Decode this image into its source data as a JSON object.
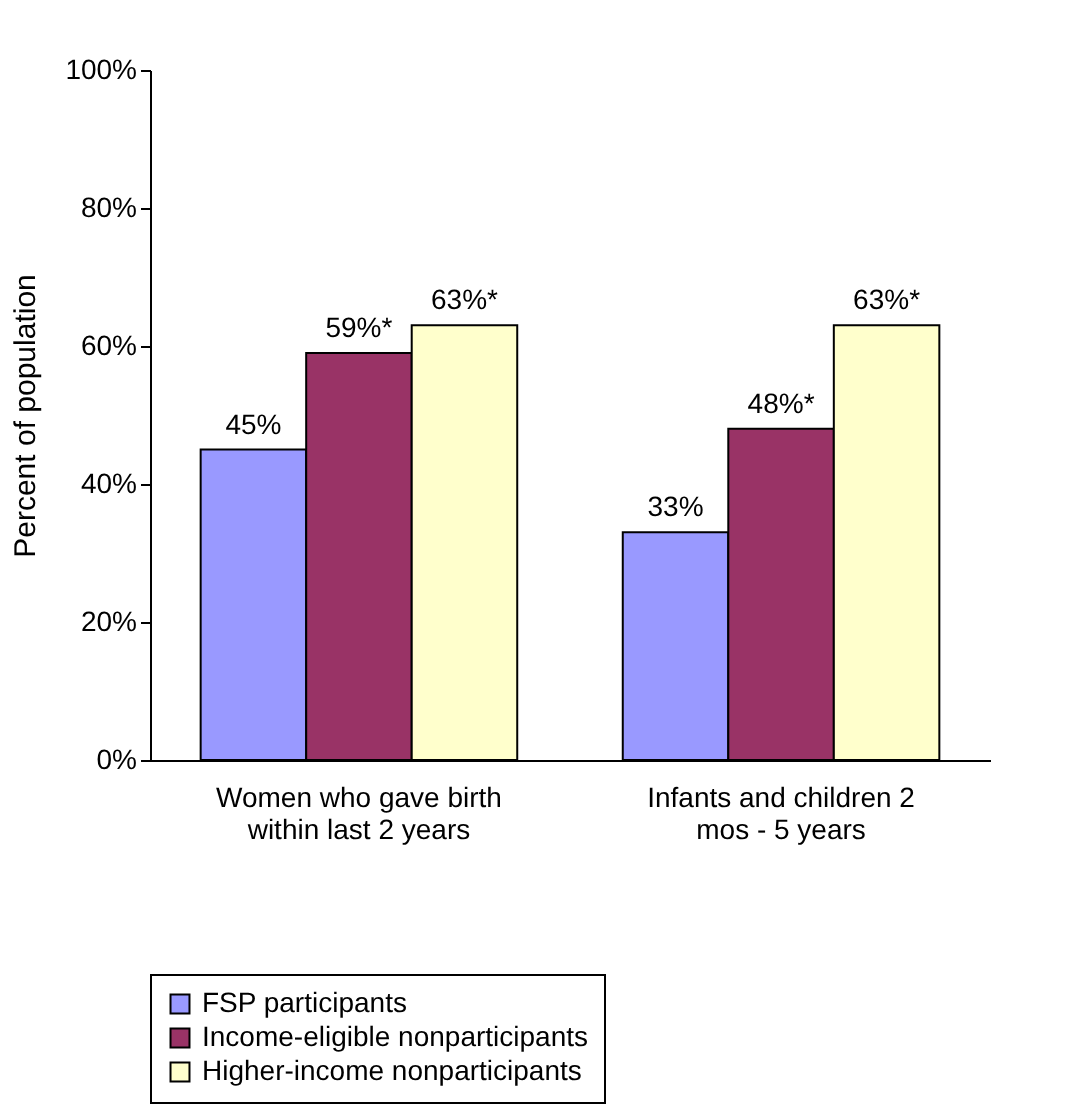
{
  "chart_data": {
    "type": "bar",
    "ylabel": "Percent of population",
    "categories": [
      "Women who gave birth within last 2 years",
      "Infants and children 2 mos - 5 years"
    ],
    "series": [
      {
        "name": "FSP participants",
        "color": "#9999ff",
        "values": [
          45,
          33
        ],
        "value_labels": [
          "45%",
          "33%"
        ]
      },
      {
        "name": "Income-eligible nonparticipants",
        "color": "#993366",
        "values": [
          59,
          48
        ],
        "value_labels": [
          "59%*",
          "48%*"
        ]
      },
      {
        "name": "Higher-income nonparticipants",
        "color": "#ffffcc",
        "values": [
          63,
          63
        ],
        "value_labels": [
          "63%*",
          "63%*"
        ]
      }
    ],
    "ylim": [
      0,
      100
    ],
    "yticks": [
      {
        "value": 0,
        "label": "0%"
      },
      {
        "value": 20,
        "label": "20%"
      },
      {
        "value": 40,
        "label": "40%"
      },
      {
        "value": 60,
        "label": "60%"
      },
      {
        "value": 80,
        "label": "80%"
      },
      {
        "value": 100,
        "label": "100%"
      }
    ],
    "grid": false,
    "legend": "bottom"
  }
}
